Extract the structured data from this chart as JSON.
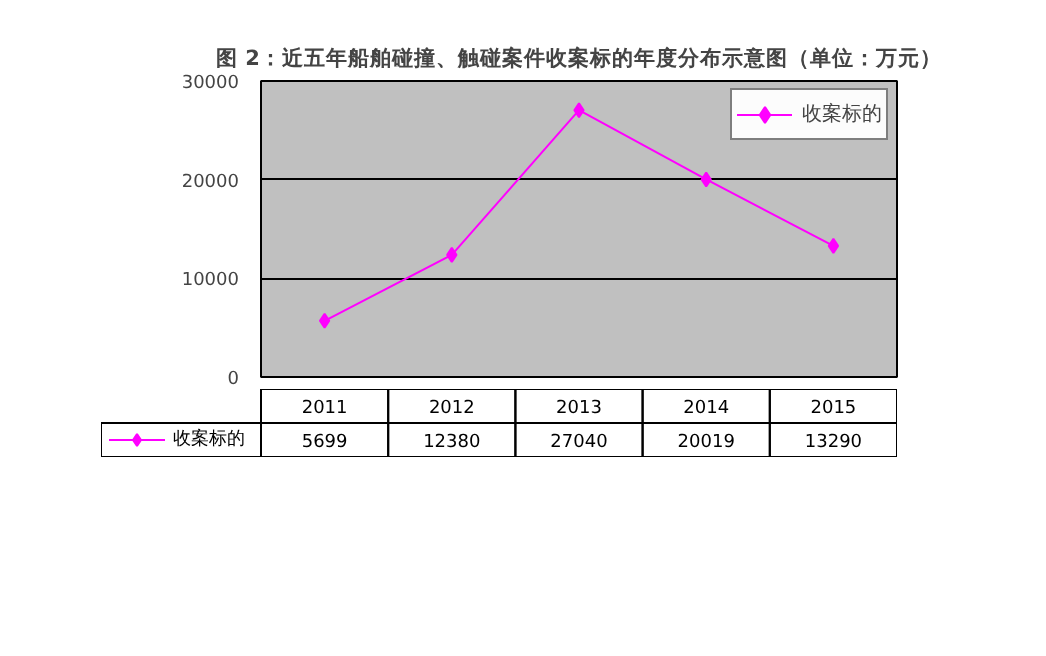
{
  "chart_data": {
    "type": "line",
    "title": "图 2：近五年船舶碰撞、触碰案件收案标的年度分布示意图（单位：万元）",
    "categories": [
      "2011",
      "2012",
      "2013",
      "2014",
      "2015"
    ],
    "series": [
      {
        "name": "收案标的",
        "color": "#ff00ff",
        "values": [
          5699,
          12380,
          27040,
          20019,
          13290
        ]
      }
    ],
    "ylim": [
      0,
      30000
    ],
    "yticks": [
      0,
      10000,
      20000,
      30000
    ],
    "grid": "y",
    "legend": "top right",
    "marker": "diamond",
    "line_style": "solid",
    "data_labels": true
  }
}
